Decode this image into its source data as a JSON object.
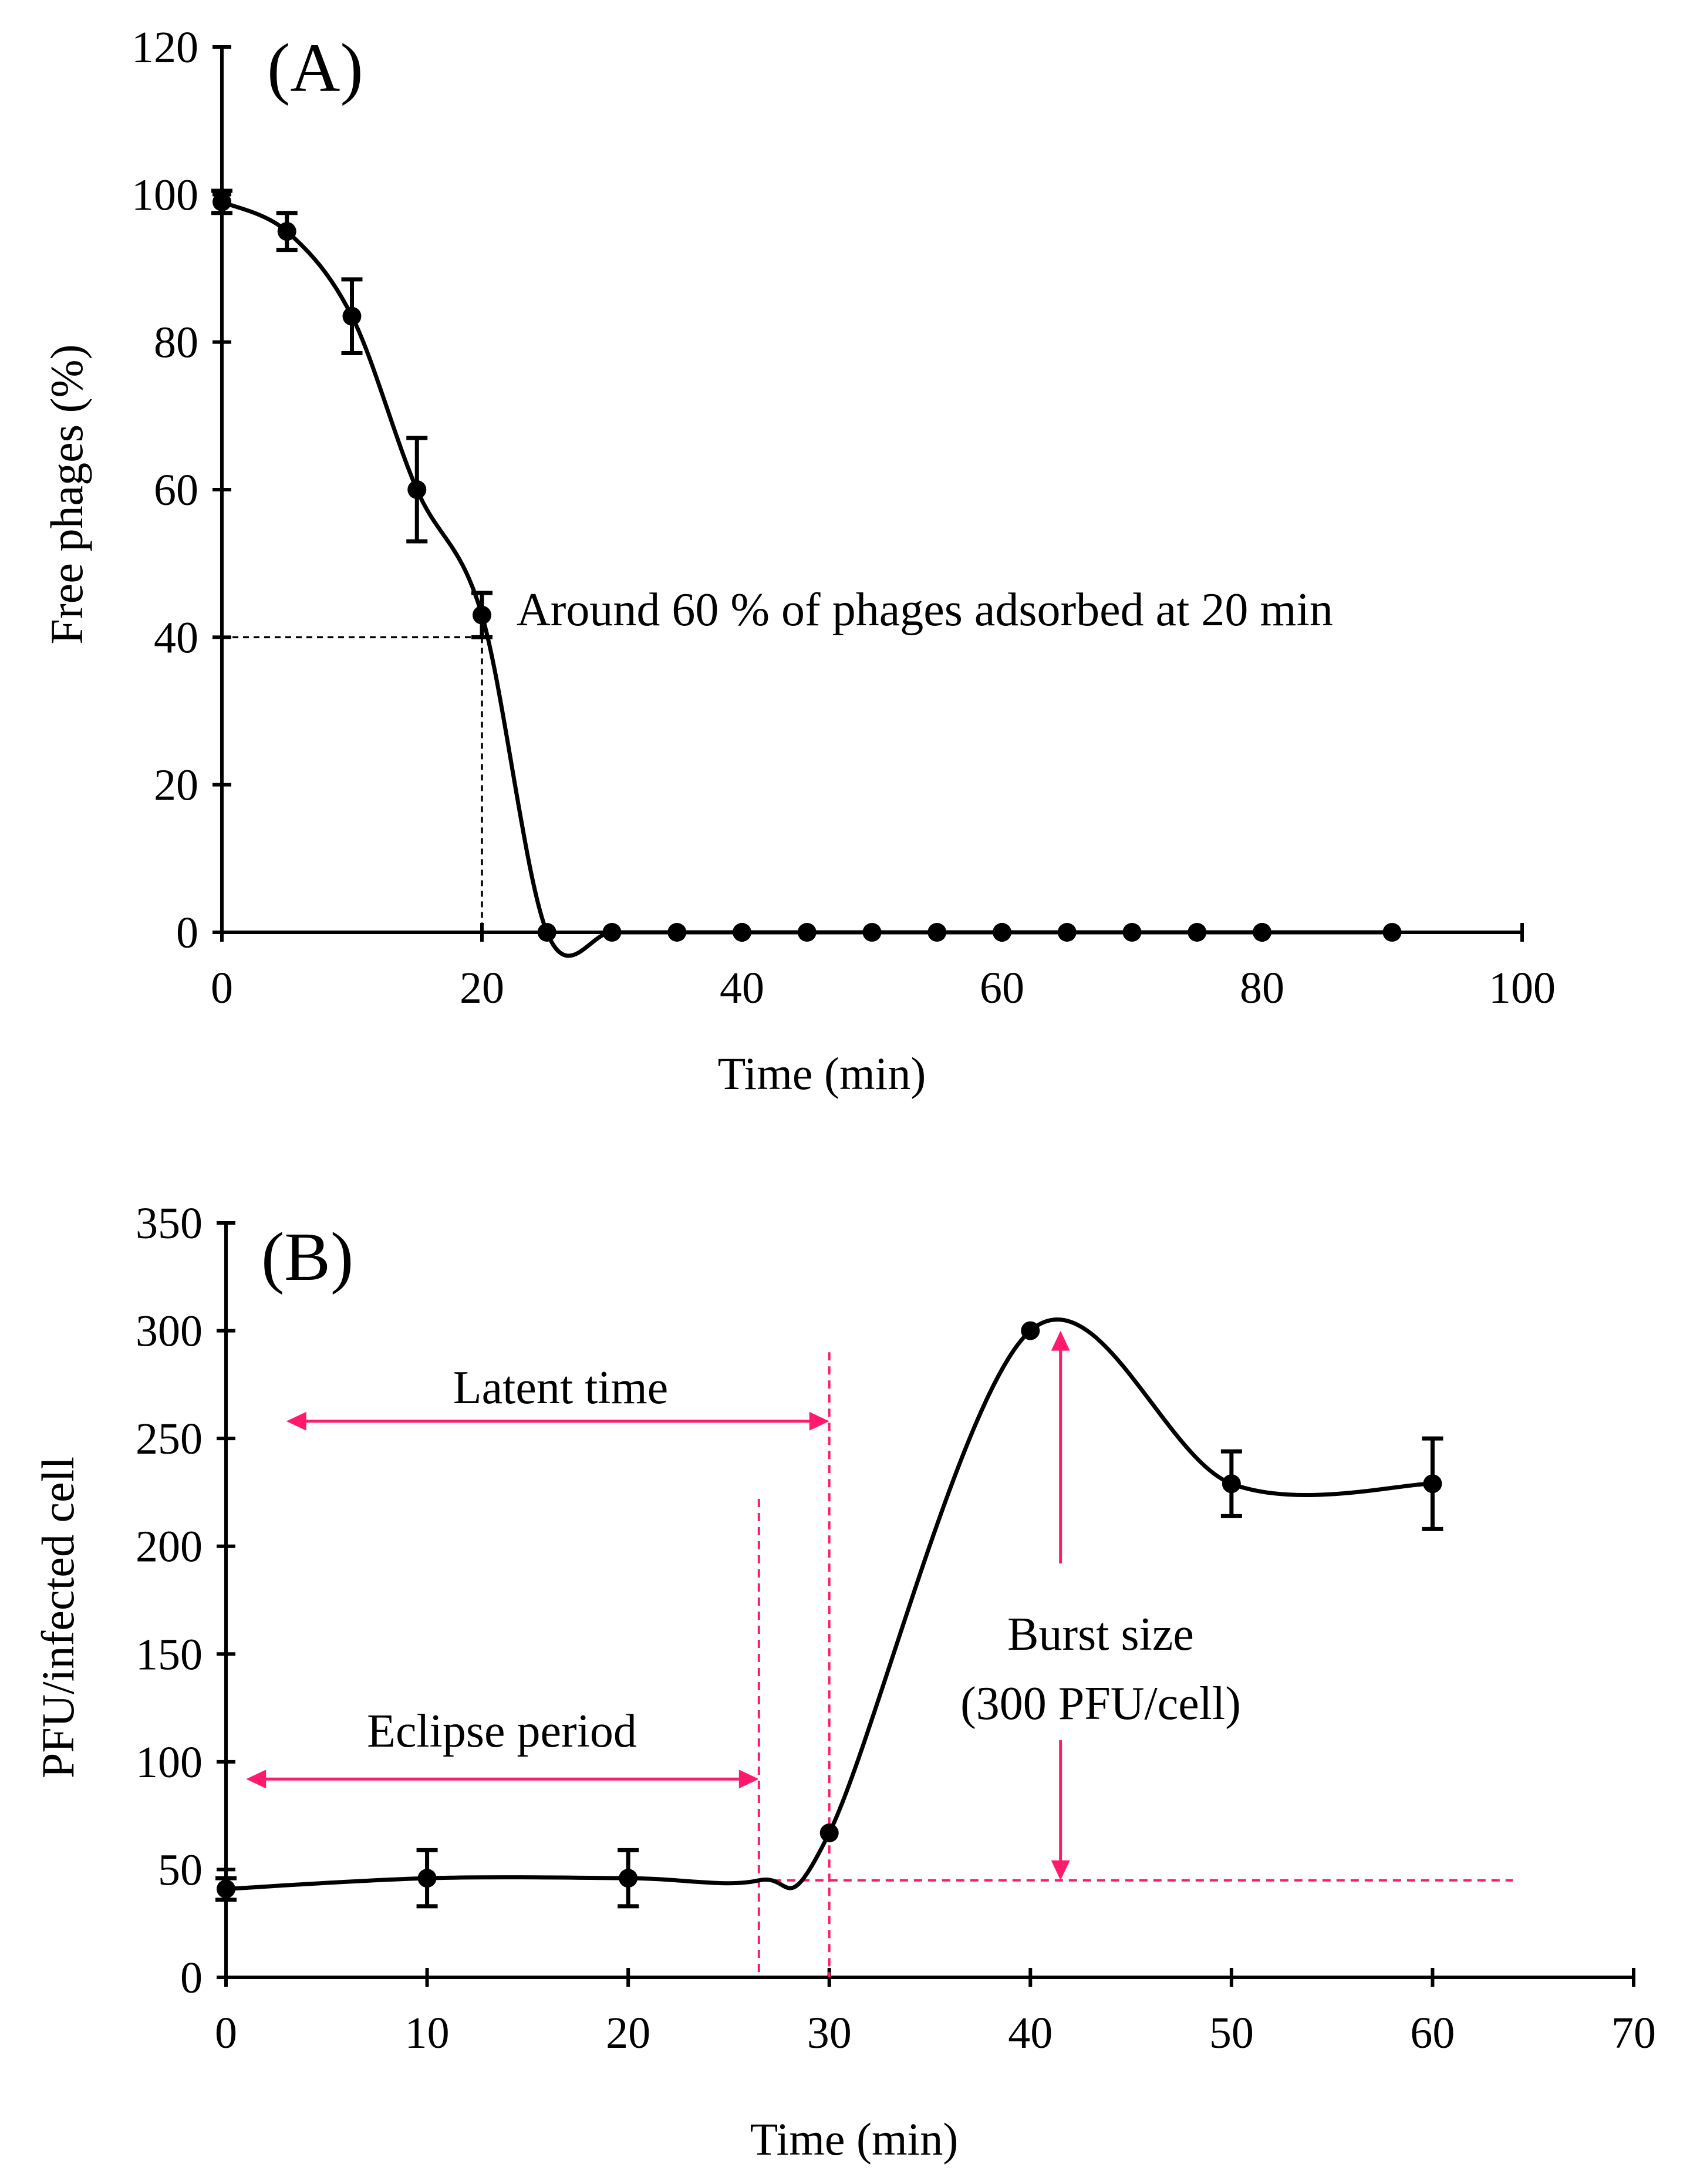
{
  "colors": {
    "line": "#000000",
    "marker": "#000000",
    "annotation_accent": "#ff1a6e",
    "background": "#ffffff"
  },
  "chart_data": [
    {
      "panel": "(A)",
      "type": "line",
      "xlabel": "Time (min)",
      "ylabel": "Free phages (%)",
      "xlim": [
        0,
        100
      ],
      "ylim": [
        0,
        120
      ],
      "xticks": [
        0,
        20,
        40,
        60,
        80,
        100
      ],
      "yticks": [
        0,
        20,
        40,
        60,
        80,
        100,
        120
      ],
      "grid": false,
      "legend": "none",
      "series": [
        {
          "name": "Free phages",
          "x": [
            0,
            5,
            10,
            15,
            20,
            25,
            30,
            35,
            40,
            45,
            50,
            55,
            60,
            65,
            70,
            75,
            80,
            90
          ],
          "y": [
            99,
            95,
            83.5,
            60,
            43,
            0,
            0,
            0,
            0,
            0,
            0,
            0,
            0,
            0,
            0,
            0,
            0,
            0
          ],
          "error": [
            1.5,
            2.5,
            5,
            7,
            3,
            0,
            0,
            0,
            0,
            0,
            0,
            0,
            0,
            0,
            0,
            0,
            0,
            0
          ]
        }
      ],
      "reference_point": {
        "x": 20,
        "y": 40
      },
      "annotations": [
        {
          "text": "Around 60 % of phages adsorbed at 20 min",
          "x": 22,
          "y": 44
        }
      ]
    },
    {
      "panel": "(B)",
      "type": "line",
      "xlabel": "Time (min)",
      "ylabel": "PFU/infected cell",
      "xlim": [
        0,
        70
      ],
      "ylim": [
        0,
        350
      ],
      "xticks": [
        0,
        10,
        20,
        30,
        40,
        50,
        60,
        70
      ],
      "yticks": [
        0,
        50,
        100,
        150,
        200,
        250,
        300,
        350
      ],
      "grid": false,
      "legend": "none",
      "series": [
        {
          "name": "PFU/infected cell",
          "x": [
            0,
            10,
            20,
            30,
            40,
            50,
            60
          ],
          "y": [
            41,
            46,
            46,
            67,
            300,
            229,
            229
          ],
          "error": [
            5,
            13,
            13,
            0,
            0,
            15,
            21
          ]
        }
      ],
      "curve_extra": {
        "x": 26.5,
        "y": 45
      },
      "latent_time": {
        "label": "Latent time",
        "from": 3,
        "to": 30,
        "y": 258
      },
      "eclipse_period": {
        "label": "Eclipse period",
        "from": 1,
        "to": 26.5,
        "y": 92
      },
      "baseline": {
        "y": 45,
        "from": 26.5,
        "to": 64
      },
      "latent_marker": {
        "x": 30,
        "y_top": 290
      },
      "eclipse_marker": {
        "x": 26.5,
        "y_top": 222
      },
      "burst": {
        "x": 41.5,
        "y_top": 300,
        "y_bottom": 45,
        "gap_top": 192,
        "gap_bottom": 110
      },
      "annotations": [
        {
          "text": "Latent time"
        },
        {
          "text": "Eclipse period"
        },
        {
          "text": "Burst size"
        },
        {
          "text": "(300 PFU/cell)"
        }
      ]
    }
  ]
}
